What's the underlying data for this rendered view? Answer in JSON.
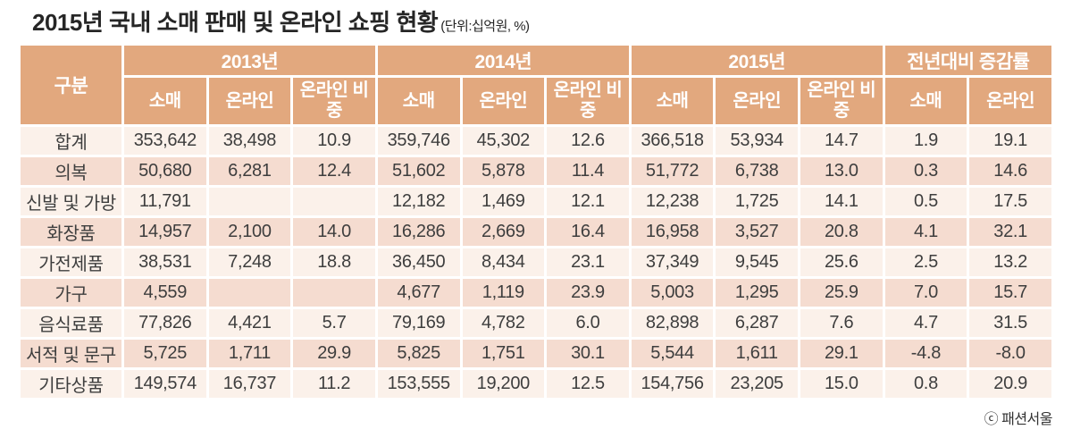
{
  "page": {
    "title": "2015년 국내 소매 판매 및 온라인 쇼핑 현황",
    "unit_note": "(단위:십억원, %)",
    "credit": "ⓒ 패션서울"
  },
  "colors": {
    "header_bg": "#e2a87e",
    "row_light": "#fbf1ea",
    "row_dark": "#f5dcd0",
    "header_text": "#ffffff",
    "body_text": "#3e3e3e"
  },
  "table": {
    "category_header": "구분",
    "groups": [
      {
        "label": "2013년",
        "columns": [
          "소매",
          "온라인",
          "온라인 비중"
        ]
      },
      {
        "label": "2014년",
        "columns": [
          "소매",
          "온라인",
          "온라인 비중"
        ]
      },
      {
        "label": "2015년",
        "columns": [
          "소매",
          "온라인",
          "온라인 비중"
        ]
      },
      {
        "label": "전년대비 증감률",
        "columns": [
          "소매",
          "온라인"
        ]
      }
    ],
    "rows": [
      {
        "category": "합계",
        "values": [
          "353,642",
          "38,498",
          "10.9",
          "359,746",
          "45,302",
          "12.6",
          "366,518",
          "53,934",
          "14.7",
          "1.9",
          "19.1"
        ]
      },
      {
        "category": "의복",
        "values": [
          "50,680",
          "6,281",
          "12.4",
          "51,602",
          "5,878",
          "11.4",
          "51,772",
          "6,738",
          "13.0",
          "0.3",
          "14.6"
        ]
      },
      {
        "category": "신발 및 가방",
        "values": [
          "11,791",
          "",
          "",
          "12,182",
          "1,469",
          "12.1",
          "12,238",
          "1,725",
          "14.1",
          "0.5",
          "17.5"
        ]
      },
      {
        "category": "화장품",
        "values": [
          "14,957",
          "2,100",
          "14.0",
          "16,286",
          "2,669",
          "16.4",
          "16,958",
          "3,527",
          "20.8",
          "4.1",
          "32.1"
        ]
      },
      {
        "category": "가전제품",
        "values": [
          "38,531",
          "7,248",
          "18.8",
          "36,450",
          "8,434",
          "23.1",
          "37,349",
          "9,545",
          "25.6",
          "2.5",
          "13.2"
        ]
      },
      {
        "category": "가구",
        "values": [
          "4,559",
          "",
          "",
          "4,677",
          "1,119",
          "23.9",
          "5,003",
          "1,295",
          "25.9",
          "7.0",
          "15.7"
        ]
      },
      {
        "category": "음식료품",
        "values": [
          "77,826",
          "4,421",
          "5.7",
          "79,169",
          "4,782",
          "6.0",
          "82,898",
          "6,287",
          "7.6",
          "4.7",
          "31.5"
        ]
      },
      {
        "category": "서적 및 문구",
        "values": [
          "5,725",
          "1,711",
          "29.9",
          "5,825",
          "1,751",
          "30.1",
          "5,544",
          "1,611",
          "29.1",
          "-4.8",
          "-8.0"
        ]
      },
      {
        "category": "기타상품",
        "values": [
          "149,574",
          "16,737",
          "11.2",
          "153,555",
          "19,200",
          "12.5",
          "154,756",
          "23,205",
          "15.0",
          "0.8",
          "20.9"
        ]
      }
    ]
  },
  "chart_data": {
    "type": "table",
    "title": "2015년 국내 소매 판매 및 온라인 쇼핑 현황",
    "unit": "십억원, %",
    "columns": [
      "구분",
      "2013 소매",
      "2013 온라인",
      "2013 온라인 비중",
      "2014 소매",
      "2014 온라인",
      "2014 온라인 비중",
      "2015 소매",
      "2015 온라인",
      "2015 온라인 비중",
      "전년대비 증감률 소매",
      "전년대비 증감률 온라인"
    ],
    "rows": [
      [
        "합계",
        353642,
        38498,
        10.9,
        359746,
        45302,
        12.6,
        366518,
        53934,
        14.7,
        1.9,
        19.1
      ],
      [
        "의복",
        50680,
        6281,
        12.4,
        51602,
        5878,
        11.4,
        51772,
        6738,
        13.0,
        0.3,
        14.6
      ],
      [
        "신발 및 가방",
        11791,
        null,
        null,
        12182,
        1469,
        12.1,
        12238,
        1725,
        14.1,
        0.5,
        17.5
      ],
      [
        "화장품",
        14957,
        2100,
        14.0,
        16286,
        2669,
        16.4,
        16958,
        3527,
        20.8,
        4.1,
        32.1
      ],
      [
        "가전제품",
        38531,
        7248,
        18.8,
        36450,
        8434,
        23.1,
        37349,
        9545,
        25.6,
        2.5,
        13.2
      ],
      [
        "가구",
        4559,
        null,
        null,
        4677,
        1119,
        23.9,
        5003,
        1295,
        25.9,
        7.0,
        15.7
      ],
      [
        "음식료품",
        77826,
        4421,
        5.7,
        79169,
        4782,
        6.0,
        82898,
        6287,
        7.6,
        4.7,
        31.5
      ],
      [
        "서적 및 문구",
        5725,
        1711,
        29.9,
        5825,
        1751,
        30.1,
        5544,
        1611,
        29.1,
        -4.8,
        -8.0
      ],
      [
        "기타상품",
        149574,
        16737,
        11.2,
        153555,
        19200,
        12.5,
        154756,
        23205,
        15.0,
        0.8,
        20.9
      ]
    ]
  }
}
